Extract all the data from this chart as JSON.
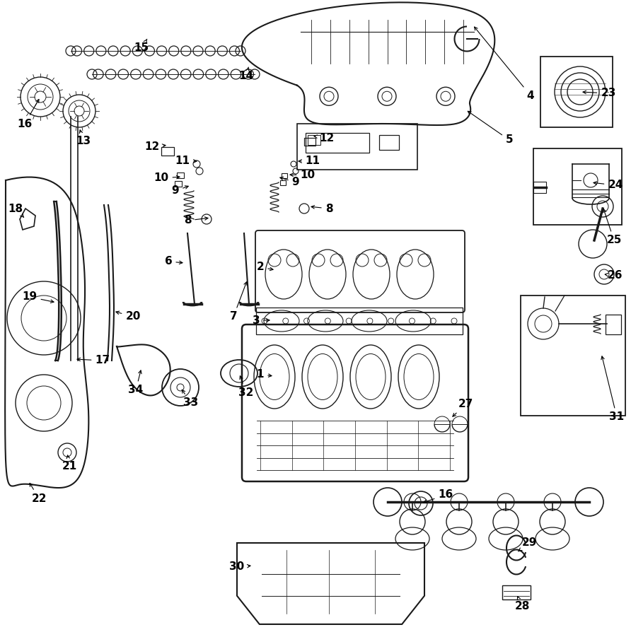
{
  "background_color": "#ffffff",
  "line_color": "#1a1a1a",
  "fig_width": 8.92,
  "fig_height": 8.94,
  "dpi": 100
}
